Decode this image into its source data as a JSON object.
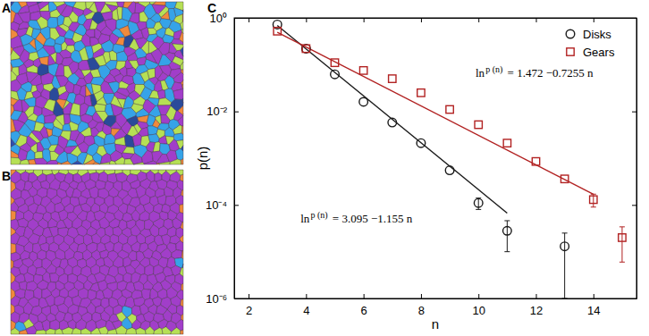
{
  "chart_data": {
    "type": "scatter",
    "panel_labels": [
      "A",
      "B",
      "C"
    ],
    "x_label": "n",
    "y_label": "p(n)",
    "log": "y",
    "grid": false,
    "legend": "top-right",
    "xlim": [
      1.5,
      15.5
    ],
    "xticks": [
      2,
      4,
      6,
      8,
      10,
      12,
      14
    ],
    "ylim": [
      1e-06,
      1
    ],
    "yticks": [
      {
        "value": 1,
        "label": "10⁰"
      },
      {
        "value": 0.01,
        "label": "10⁻²"
      },
      {
        "value": 0.0001,
        "label": "10⁻⁴"
      },
      {
        "value": 1e-06,
        "label": "10⁻⁶"
      }
    ],
    "series": [
      {
        "name": "Disks",
        "type": "scatter",
        "marker": "circle",
        "color": "#1a1a1a",
        "x": [
          3,
          4,
          5,
          6,
          7,
          8,
          9,
          10,
          11,
          13
        ],
        "values": [
          0.72,
          0.22,
          0.062,
          0.016,
          0.0058,
          0.0021,
          0.00055,
          0.00011,
          2.8e-05,
          1.3e-05
        ],
        "errors": [
          null,
          null,
          null,
          null,
          null,
          null,
          null,
          3e-05,
          1.8e-05,
          1.2e-05
        ]
      },
      {
        "name": "Gears",
        "type": "scatter",
        "marker": "square",
        "color": "#b22222",
        "x": [
          3,
          4,
          5,
          6,
          7,
          8,
          9,
          10,
          11,
          12,
          13,
          14,
          15
        ],
        "values": [
          0.52,
          0.22,
          0.11,
          0.075,
          0.05,
          0.025,
          0.011,
          0.0052,
          0.0021,
          0.00085,
          0.00036,
          0.00013,
          2e-05
        ],
        "errors": [
          null,
          null,
          null,
          null,
          null,
          null,
          null,
          null,
          null,
          null,
          null,
          4e-05,
          1.4e-05
        ]
      }
    ],
    "fits": [
      {
        "color": "#1a1a1a",
        "line_style": "solid",
        "x": [
          3,
          11
        ],
        "values": [
          0.69,
          6.7e-05
        ],
        "label": [
          "ln",
          "p (n)",
          " = 3.095 −1.155 n"
        ]
      },
      {
        "color": "#b22222",
        "line_style": "solid",
        "x": [
          3,
          14
        ],
        "values": [
          0.494,
          0.000169
        ],
        "label": [
          "ln",
          "p (n)",
          " = 1.472 −0.7255 n"
        ]
      }
    ]
  }
}
